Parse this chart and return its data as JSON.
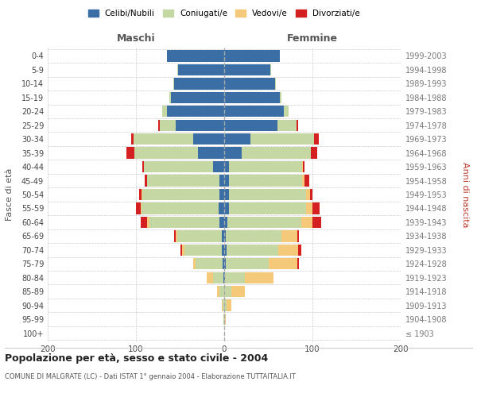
{
  "age_groups": [
    "100+",
    "95-99",
    "90-94",
    "85-89",
    "80-84",
    "75-79",
    "70-74",
    "65-69",
    "60-64",
    "55-59",
    "50-54",
    "45-49",
    "40-44",
    "35-39",
    "30-34",
    "25-29",
    "20-24",
    "15-19",
    "10-14",
    "5-9",
    "0-4"
  ],
  "birth_years": [
    "≤ 1903",
    "1904-1908",
    "1909-1913",
    "1914-1918",
    "1919-1923",
    "1924-1928",
    "1929-1933",
    "1934-1938",
    "1939-1943",
    "1944-1948",
    "1949-1953",
    "1954-1958",
    "1959-1963",
    "1964-1968",
    "1969-1973",
    "1974-1978",
    "1979-1983",
    "1984-1988",
    "1989-1993",
    "1994-1998",
    "1999-2003"
  ],
  "male_celibi": [
    0,
    0,
    0,
    0,
    1,
    2,
    3,
    3,
    5,
    6,
    5,
    5,
    13,
    30,
    35,
    55,
    65,
    60,
    57,
    52,
    65
  ],
  "male_coniugati": [
    0,
    1,
    2,
    5,
    12,
    30,
    42,
    50,
    80,
    88,
    88,
    82,
    78,
    72,
    68,
    18,
    5,
    2,
    1,
    1,
    0
  ],
  "male_vedovi": [
    0,
    0,
    1,
    3,
    7,
    3,
    3,
    2,
    2,
    1,
    1,
    0,
    0,
    0,
    0,
    0,
    0,
    0,
    0,
    0,
    0
  ],
  "male_divorziati": [
    0,
    0,
    0,
    0,
    0,
    0,
    2,
    2,
    8,
    5,
    2,
    3,
    2,
    9,
    2,
    2,
    0,
    0,
    0,
    0,
    0
  ],
  "fem_nubili": [
    0,
    0,
    0,
    0,
    1,
    2,
    3,
    2,
    4,
    5,
    5,
    5,
    5,
    20,
    30,
    60,
    68,
    63,
    58,
    52,
    63
  ],
  "fem_coniugate": [
    0,
    1,
    3,
    8,
    22,
    48,
    58,
    63,
    83,
    88,
    88,
    83,
    83,
    78,
    72,
    22,
    5,
    2,
    1,
    1,
    0
  ],
  "fem_vedove": [
    0,
    1,
    5,
    15,
    33,
    33,
    23,
    18,
    13,
    7,
    4,
    3,
    1,
    0,
    0,
    0,
    0,
    0,
    0,
    0,
    0
  ],
  "fem_divorziate": [
    0,
    0,
    0,
    0,
    0,
    2,
    3,
    2,
    10,
    8,
    3,
    5,
    2,
    7,
    5,
    2,
    0,
    0,
    0,
    0,
    0
  ],
  "col_celibi": "#3a6ea5",
  "col_coniugati": "#c5d8a4",
  "col_vedovi": "#f5c97a",
  "col_divorziati": "#d42020",
  "xlim": 200,
  "title": "Popolazione per età, sesso e stato civile - 2004",
  "subtitle": "COMUNE DI MALGRATE (LC) - Dati ISTAT 1° gennaio 2004 - Elaborazione TUTTAITALIA.IT",
  "label_maschi": "Maschi",
  "label_femmine": "Femmine",
  "label_fasce": "Fasce di età",
  "label_anni": "Anni di nascita",
  "legend_labels": [
    "Celibi/Nubili",
    "Coniugati/e",
    "Vedovi/e",
    "Divorziati/e"
  ]
}
